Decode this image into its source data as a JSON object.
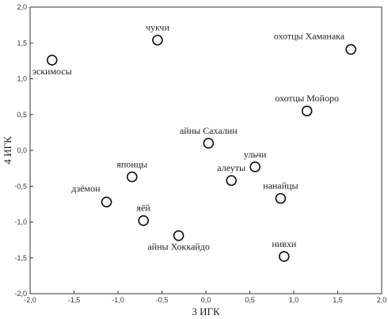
{
  "chart_data": {
    "type": "scatter",
    "title": "",
    "xlabel": "3 ИГК",
    "ylabel": "4 ИГК",
    "xlim": [
      -2.0,
      2.0
    ],
    "ylim": [
      -2.0,
      2.0
    ],
    "xticks": [
      "-2,0",
      "-1,5",
      "-1,0",
      "-0,5",
      "0,0",
      "0,5",
      "1,0",
      "1,5",
      "2,0"
    ],
    "yticks": [
      "-2,0",
      "-1,5",
      "-1,0",
      "-0,5",
      "0,0",
      "0,5",
      "1,0",
      "1,5",
      "2,0"
    ],
    "grid": false,
    "marker": "open-circle",
    "points": [
      {
        "label": "чукчи",
        "x": -0.55,
        "y": 1.54,
        "label_pos": "above"
      },
      {
        "label": "эскимосы",
        "x": -1.75,
        "y": 1.26,
        "label_pos": "below"
      },
      {
        "label": "охотцы Хаманака",
        "x": 1.65,
        "y": 1.41,
        "label_pos": "above-left"
      },
      {
        "label": "охотцы Мойоро",
        "x": 1.15,
        "y": 0.55,
        "label_pos": "above"
      },
      {
        "label": "айны Сахалин",
        "x": 0.03,
        "y": 0.1,
        "label_pos": "above"
      },
      {
        "label": "ульчи",
        "x": 0.56,
        "y": -0.23,
        "label_pos": "above"
      },
      {
        "label": "алеуты",
        "x": 0.29,
        "y": -0.42,
        "label_pos": "above"
      },
      {
        "label": "нанайцы",
        "x": 0.85,
        "y": -0.67,
        "label_pos": "above"
      },
      {
        "label": "японцы",
        "x": -0.84,
        "y": -0.37,
        "label_pos": "above"
      },
      {
        "label": "дзёмон",
        "x": -1.13,
        "y": -0.72,
        "label_pos": "above-left"
      },
      {
        "label": "яёй",
        "x": -0.71,
        "y": -0.98,
        "label_pos": "above"
      },
      {
        "label": "айны Хоккайдо",
        "x": -0.31,
        "y": -1.19,
        "label_pos": "below"
      },
      {
        "label": "нивхи",
        "x": 0.89,
        "y": -1.48,
        "label_pos": "above"
      }
    ]
  }
}
